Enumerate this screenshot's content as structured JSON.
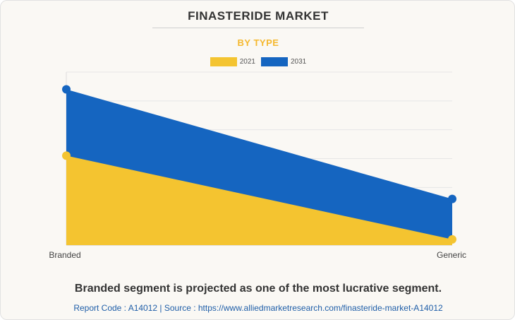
{
  "header": {
    "title": "FINASTERIDE MARKET",
    "subtitle": "BY TYPE"
  },
  "colors": {
    "series_2021": "#f4c430",
    "series_2031": "#1565c0",
    "subtitle": "#f5b82e"
  },
  "chart_data": {
    "type": "area",
    "title": "FINASTERIDE MARKET",
    "subtitle": "BY TYPE",
    "categories": [
      "Branded",
      "Generic"
    ],
    "series": [
      {
        "name": "2021",
        "values": [
          31,
          2
        ]
      },
      {
        "name": "2031",
        "values": [
          54,
          16
        ]
      }
    ],
    "xlabel": "",
    "ylabel": "",
    "ylim": [
      0,
      60
    ],
    "grid": true,
    "stacked": false,
    "legend": "top-center"
  },
  "footer": {
    "statement": "Branded segment is projected as one of the most lucrative segment.",
    "source": "Report Code : A14012  |  Source : https://www.alliedmarketresearch.com/finasteride-market-A14012"
  }
}
